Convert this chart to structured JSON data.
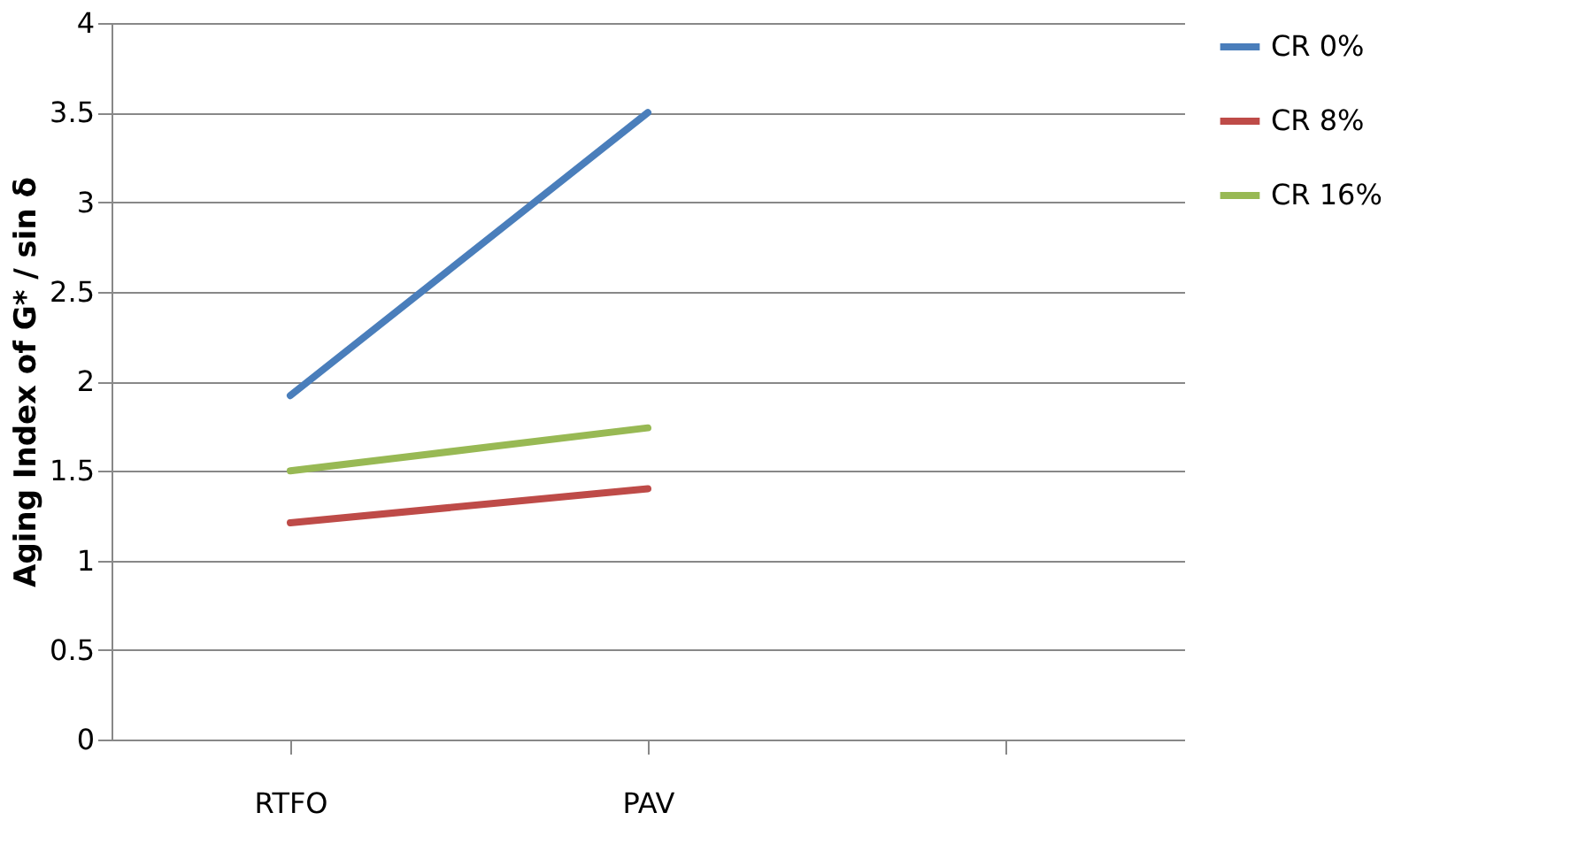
{
  "chart_data": {
    "type": "line",
    "ylabel": "Aging Index of G* / sin δ",
    "categories": [
      "RTFO",
      "PAV",
      null
    ],
    "series": [
      {
        "name": "CR 0%",
        "color": "#4a7ebb",
        "values": [
          1.92,
          3.5,
          null
        ]
      },
      {
        "name": "CR 8%",
        "color": "#be4b48",
        "values": [
          1.21,
          1.4,
          null
        ]
      },
      {
        "name": "CR 16%",
        "color": "#98b954",
        "values": [
          1.5,
          1.74,
          null
        ]
      }
    ],
    "ylim": [
      0,
      4
    ],
    "yticks": [
      0,
      0.5,
      1,
      1.5,
      2,
      2.5,
      3,
      3.5,
      4
    ],
    "grid": "y",
    "legend": "right",
    "marker": "none",
    "line_style": "solid"
  }
}
